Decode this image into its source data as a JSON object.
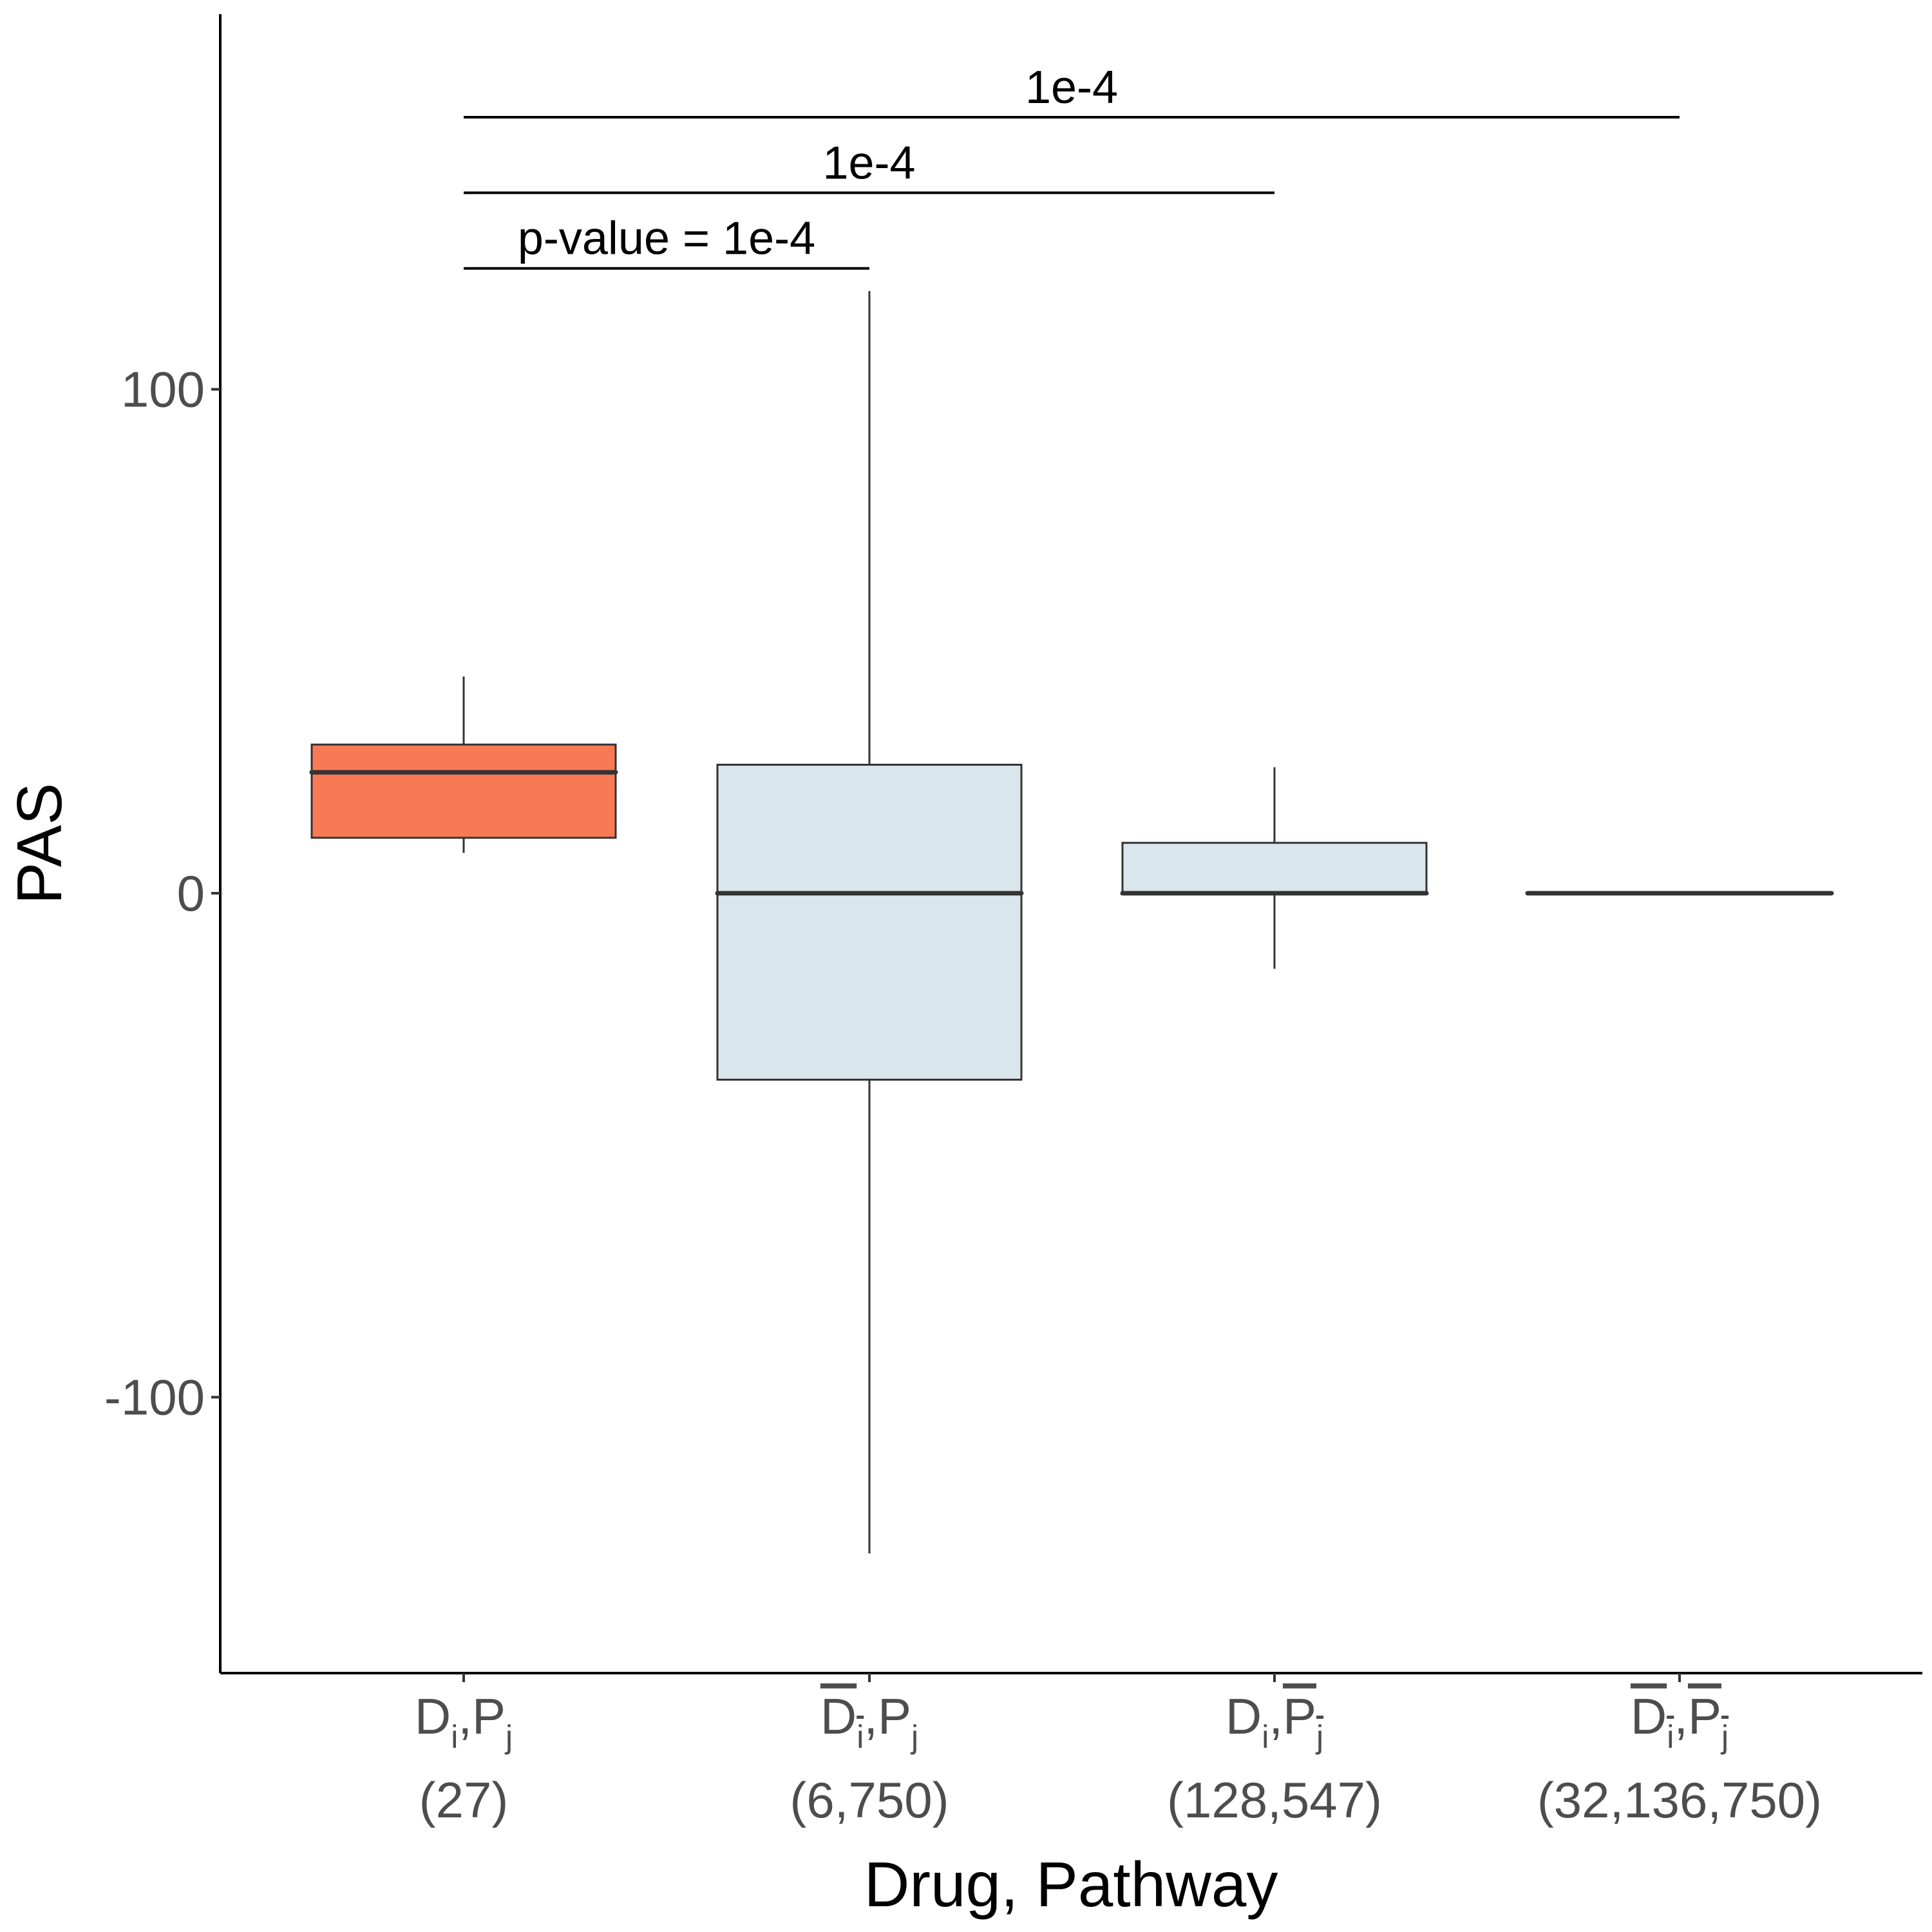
{
  "chart_data": {
    "type": "box",
    "xlabel": "Drug, Pathway",
    "ylabel": "PAS",
    "ylim": [
      -155,
      175
    ],
    "yticks": [
      -100,
      0,
      100
    ],
    "grid": false,
    "legend": "none",
    "categories": [
      {
        "main": "D",
        "main_sub": "i",
        "main_overline": false,
        "second": "P",
        "second_sub": "j",
        "second_overline": false,
        "count": "(27)"
      },
      {
        "main": "D",
        "main_sub": "i",
        "main_overline": true,
        "second": "P",
        "second_sub": "j",
        "second_overline": false,
        "count": "(6,750)"
      },
      {
        "main": "D",
        "main_sub": "i",
        "main_overline": false,
        "second": "P",
        "second_sub": "j",
        "second_overline": true,
        "count": "(128,547)"
      },
      {
        "main": "D",
        "main_sub": "i",
        "main_overline": true,
        "second": "P",
        "second_sub": "j",
        "second_overline": true,
        "count": "(32,136,750)"
      }
    ],
    "boxes": [
      {
        "whisker_low": 8,
        "q1": 11,
        "median": 24,
        "q3": 29.5,
        "whisker_high": 43,
        "fill": "#F87A55"
      },
      {
        "whisker_low": -131,
        "q1": -37,
        "median": 0,
        "q3": 25.5,
        "whisker_high": 119.5,
        "fill": "#D9E6EC"
      },
      {
        "whisker_low": -15,
        "q1": 0,
        "median": 0,
        "q3": 10,
        "whisker_high": 25,
        "fill": "#D9E6EC"
      },
      {
        "whisker_low": 0,
        "q1": 0,
        "median": 0,
        "q3": 0,
        "whisker_high": 0,
        "fill": "#D9E6EC"
      }
    ],
    "significance": [
      {
        "from": 0,
        "to": 1,
        "y": 124,
        "label": "p-value = 1e-4"
      },
      {
        "from": 0,
        "to": 2,
        "y": 139,
        "label": "1e-4"
      },
      {
        "from": 0,
        "to": 3,
        "y": 154,
        "label": "1e-4"
      }
    ]
  }
}
